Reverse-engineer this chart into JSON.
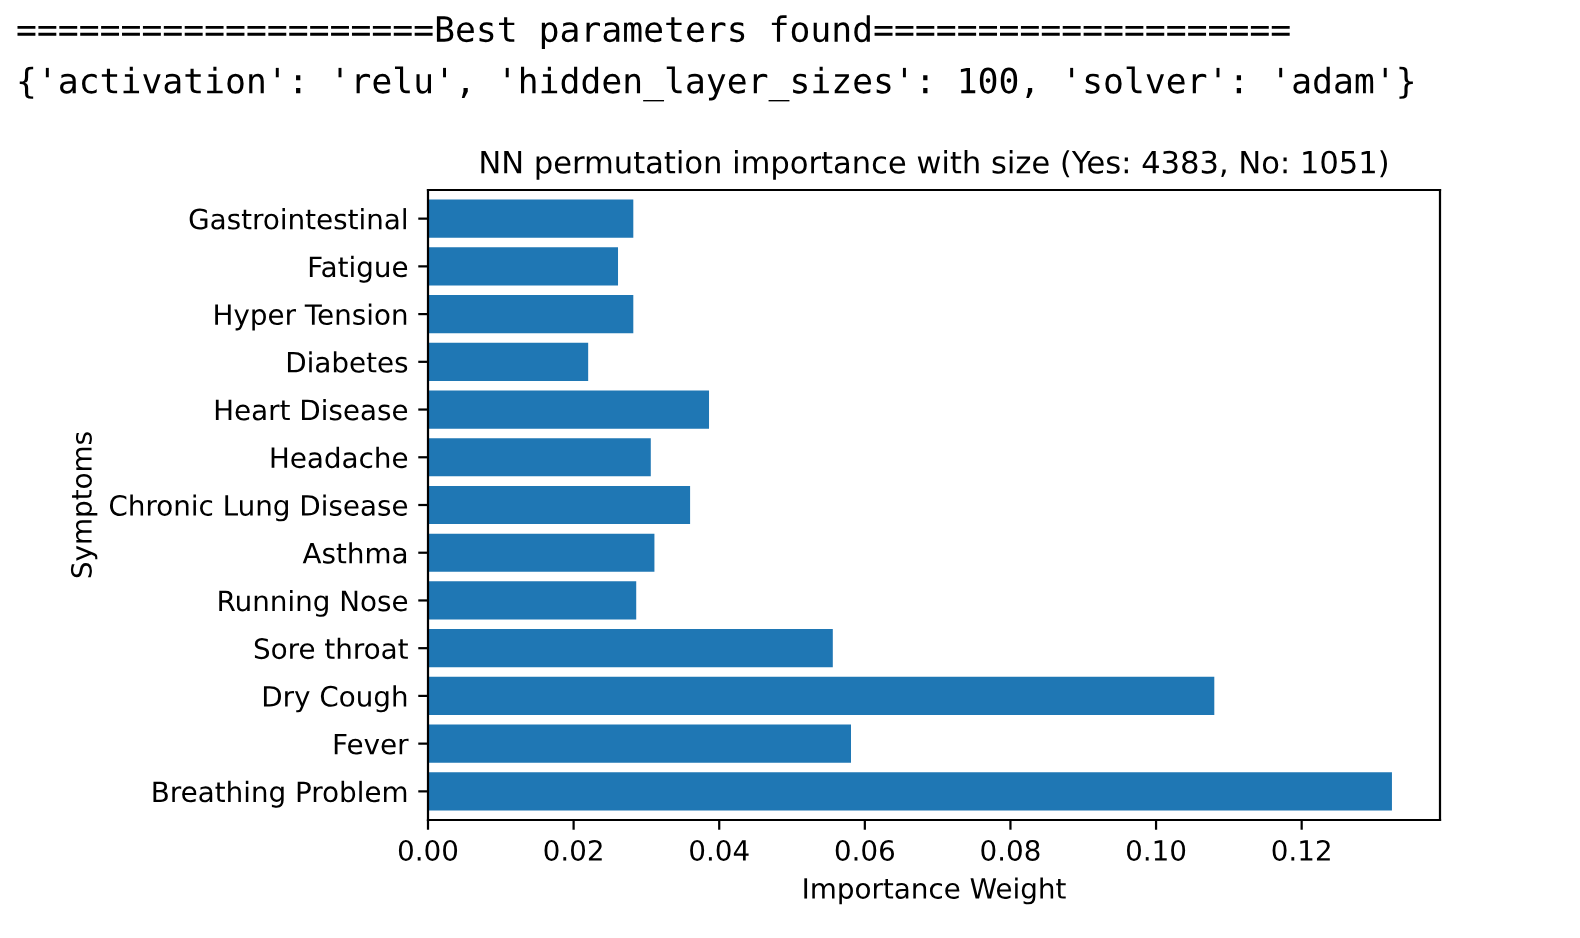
{
  "chart_data": {
    "type": "bar",
    "orientation": "horizontal",
    "title": "NN permutation importance with size (Yes: 4383, No: 1051)",
    "xlabel": "Importance Weight",
    "ylabel": "Symptoms",
    "annotations": [
      "====================Best parameters found====================",
      "{'activation': 'relu', 'hidden_layer_sizes': 100, 'solver': 'adam'}"
    ],
    "categories": [
      "Gastrointestinal",
      "Fatigue",
      "Hyper Tension",
      "Diabetes",
      "Heart Disease",
      "Headache",
      "Chronic Lung Disease",
      "Asthma",
      "Running Nose",
      "Sore throat",
      "Dry Cough",
      "Fever",
      "Breathing Problem"
    ],
    "values": [
      0.0282,
      0.0261,
      0.0282,
      0.022,
      0.0386,
      0.0306,
      0.036,
      0.0311,
      0.0286,
      0.0556,
      0.108,
      0.0581,
      0.1324
    ],
    "color": "#1f77b4",
    "xlim": [
      0,
      0.139
    ],
    "xticks": [
      {
        "value": 0,
        "label": "0.00"
      },
      {
        "value": 0.02,
        "label": "0.02"
      },
      {
        "value": 0.04,
        "label": "0.04"
      },
      {
        "value": 0.06,
        "label": "0.06"
      },
      {
        "value": 0.08,
        "label": "0.08"
      },
      {
        "value": 0.1,
        "label": "0.10"
      },
      {
        "value": 0.12,
        "label": "0.12"
      }
    ],
    "grid": false
  }
}
